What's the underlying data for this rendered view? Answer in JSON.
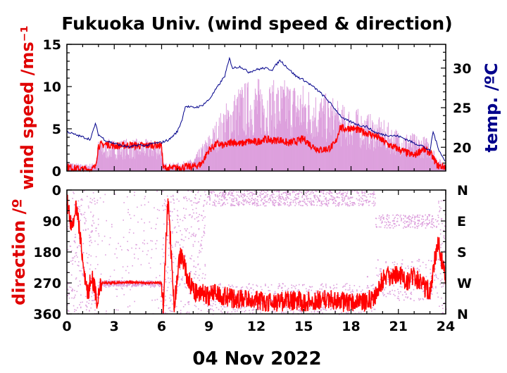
{
  "title": "Fukuoka Univ. (wind speed & direction)",
  "colors": {
    "wind_gust": "#dda0dd",
    "wind_mean": "#ff0000",
    "temperature": "#00008b",
    "speed_label": "#e00000",
    "temp_label": "#00008b",
    "direction_label": "#e00000"
  },
  "chart_data": [
    {
      "type": "line",
      "panel": "wind speed and temperature",
      "title": "Fukuoka Univ. (wind speed & direction)",
      "xlabel": "04 Nov 2022",
      "ylabel": "wind speed /ms⁻¹",
      "y2label": "temp. /ºC",
      "xlim": [
        0,
        24
      ],
      "ylim": [
        0,
        15
      ],
      "y2lim": [
        17,
        33
      ],
      "x_ticks": [
        0,
        3,
        6,
        9,
        12,
        15,
        18,
        21,
        24
      ],
      "x_tick_labels": [
        "0",
        "3",
        "6",
        "9",
        "12",
        "15",
        "18",
        "21",
        "24"
      ],
      "y_ticks": [
        0,
        5,
        10,
        15
      ],
      "y_tick_labels": [
        "0",
        "5",
        "10",
        "15"
      ],
      "y2_ticks": [
        20,
        25,
        30
      ],
      "y2_tick_labels": [
        "20",
        "25",
        "30"
      ],
      "grid": false,
      "series": [
        {
          "role": "mean wind speed",
          "axis": "left",
          "x": [
            0,
            0.5,
            1,
            1.5,
            1.8,
            2,
            2.5,
            3,
            3.5,
            4,
            4.5,
            5,
            5.5,
            6,
            6.1,
            6.5,
            7,
            7.5,
            8,
            8.5,
            9,
            9.5,
            10,
            10.5,
            11,
            11.5,
            12,
            12.5,
            13,
            13.5,
            14,
            14.5,
            15,
            15.5,
            16,
            16.5,
            17,
            17.3,
            17.5,
            18,
            18.5,
            19,
            19.5,
            20,
            20.5,
            21,
            21.5,
            22,
            22.5,
            23,
            23.5,
            24
          ],
          "y": [
            0.5,
            0.3,
            0.2,
            0.2,
            0.4,
            3.0,
            3.2,
            3.0,
            3.0,
            3.1,
            3.0,
            3.0,
            3.1,
            3.0,
            0.4,
            0.3,
            0.4,
            0.5,
            0.5,
            0.8,
            2.5,
            3.2,
            3.0,
            3.5,
            3.2,
            3.5,
            3.4,
            3.8,
            3.6,
            3.7,
            3.3,
            3.5,
            3.8,
            3.0,
            2.5,
            2.6,
            3.2,
            5.2,
            5.0,
            5.1,
            4.8,
            4.5,
            4.2,
            3.6,
            3.0,
            2.6,
            2.2,
            1.8,
            2.6,
            2.2,
            0.6,
            0.5
          ]
        },
        {
          "role": "peak wind speed",
          "axis": "left",
          "x": [
            0,
            1,
            1.8,
            2,
            3,
            4,
            5,
            6,
            6.1,
            7,
            7.5,
            8,
            8.5,
            9,
            10,
            11,
            12,
            13,
            14,
            15,
            16,
            17,
            17.3,
            18,
            19,
            20,
            21,
            22,
            23,
            23.5,
            24
          ],
          "y": [
            1.2,
            0.8,
            1.0,
            3.8,
            3.8,
            3.9,
            3.8,
            3.8,
            1.0,
            1.0,
            1.2,
            1.5,
            3.0,
            4.5,
            8.0,
            10.5,
            11.2,
            10.8,
            11.0,
            10.5,
            9.5,
            8.8,
            8.0,
            7.8,
            7.0,
            6.2,
            5.0,
            4.5,
            4.0,
            1.5,
            1.2
          ]
        },
        {
          "role": "temperature",
          "axis": "right",
          "x": [
            0,
            0.5,
            1,
            1.5,
            1.8,
            2,
            2.5,
            3,
            3.5,
            4,
            4.5,
            5,
            5.5,
            6,
            6.5,
            7,
            7.3,
            7.5,
            8,
            8.5,
            9,
            9.5,
            10,
            10.3,
            10.5,
            11,
            11.5,
            12,
            12.5,
            13,
            13.5,
            14,
            14.5,
            15,
            15.5,
            16,
            16.5,
            17,
            17.5,
            18,
            18.5,
            19,
            19.5,
            20,
            20.5,
            21,
            21.5,
            22,
            22.5,
            23,
            23.2,
            23.5,
            24
          ],
          "y": [
            22.0,
            21.6,
            21.3,
            21.0,
            23.0,
            21.6,
            20.8,
            20.5,
            20.2,
            20.0,
            20.3,
            20.2,
            20.5,
            20.6,
            21.0,
            22.0,
            23.5,
            25.2,
            25.0,
            25.2,
            26.0,
            27.5,
            29.0,
            31.2,
            30.0,
            30.2,
            29.5,
            29.8,
            30.0,
            29.8,
            31.0,
            30.0,
            29.0,
            28.5,
            27.8,
            27.0,
            26.0,
            24.8,
            23.6,
            23.2,
            22.8,
            22.6,
            21.9,
            21.6,
            21.5,
            21.4,
            21.0,
            20.5,
            20.2,
            19.5,
            22.0,
            20.0,
            18.0
          ]
        }
      ]
    },
    {
      "type": "scatter",
      "panel": "wind direction",
      "ylabel": "direction /º",
      "xlim": [
        0,
        24
      ],
      "ylim": [
        360,
        0
      ],
      "x_ticks": [
        0,
        3,
        6,
        9,
        12,
        15,
        18,
        21,
        24
      ],
      "x_tick_labels": [
        "0",
        "3",
        "6",
        "9",
        "12",
        "15",
        "18",
        "21",
        "24"
      ],
      "y_ticks": [
        0,
        90,
        180,
        270,
        360
      ],
      "y_tick_labels": [
        "0",
        "90",
        "180",
        "270",
        "360"
      ],
      "y2_tick_labels": [
        "N",
        "E",
        "S",
        "W",
        "N"
      ],
      "grid": false,
      "series": [
        {
          "role": "mean wind direction",
          "x": [
            0,
            0.3,
            0.6,
            1,
            1.3,
            1.6,
            1.9,
            2.2,
            3,
            4,
            5,
            6,
            6.1,
            6.4,
            6.8,
            7.2,
            7.6,
            8,
            8.5,
            9,
            9.5,
            10,
            11,
            12,
            13,
            14,
            15,
            16,
            17,
            18,
            19,
            19.5,
            20,
            20.5,
            21,
            21.5,
            22,
            22.5,
            23,
            23.5,
            24
          ],
          "y": [
            20,
            120,
            40,
            200,
            300,
            250,
            330,
            270,
            270,
            268,
            270,
            270,
            340,
            20,
            330,
            180,
            250,
            290,
            300,
            310,
            300,
            310,
            320,
            320,
            330,
            320,
            325,
            320,
            320,
            330,
            325,
            310,
            260,
            250,
            240,
            270,
            250,
            280,
            290,
            150,
            260
          ]
        },
        {
          "role": "instantaneous wind direction",
          "x": [
            0.5,
            1,
            1.5,
            2,
            3,
            4,
            5,
            6.5,
            7,
            8,
            9,
            9,
            10,
            10,
            11,
            11,
            12,
            12,
            13,
            13,
            14,
            14,
            15,
            15,
            16,
            16,
            17,
            17,
            18,
            18,
            19,
            20,
            21,
            21.5,
            22,
            22,
            23,
            23.5
          ],
          "y": [
            60,
            180,
            120,
            280,
            265,
            270,
            265,
            60,
            150,
            220,
            20,
            330,
            10,
            320,
            15,
            340,
            5,
            330,
            20,
            320,
            10,
            335,
            25,
            330,
            15,
            320,
            30,
            325,
            20,
            300,
            250,
            80,
            100,
            90,
            95,
            260,
            240,
            200
          ]
        }
      ]
    }
  ]
}
